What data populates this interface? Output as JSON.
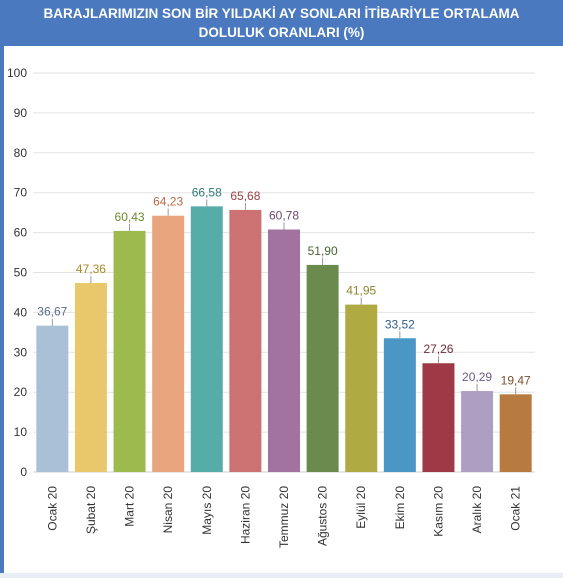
{
  "header": {
    "title_line1": "BARAJLARIMIZIN SON BİR YILDAKİ AY SONLARI İTİBARİYLE ORTALAMA",
    "title_line2": "DOLULUK ORANLARI (%)"
  },
  "colors": {
    "header_bg": "#4a79c0",
    "grid": "#e3e3e3",
    "axis_text": "#333333"
  },
  "chart_data": {
    "type": "bar",
    "title": "BARAJLARIMIZIN SON BİR YILDAKİ AY SONLARI İTİBARİYLE ORTALAMA DOLULUK ORANLARI (%)",
    "categories": [
      "Ocak 20",
      "Şubat 20",
      "Mart 20",
      "Nisan 20",
      "Mayıs 20",
      "Haziran 20",
      "Temmuz 20",
      "Ağustos 20",
      "Eylül 20",
      "Ekim 20",
      "Kasım 20",
      "Aralık 20",
      "Ocak 21"
    ],
    "values": [
      36.67,
      47.36,
      60.43,
      64.23,
      66.58,
      65.68,
      60.78,
      51.9,
      41.95,
      33.52,
      27.26,
      20.29,
      19.47
    ],
    "value_labels": [
      "36,67",
      "47,36",
      "60,43",
      "64,23",
      "66,58",
      "65,68",
      "60,78",
      "51,90",
      "41,95",
      "33,52",
      "27,26",
      "20,29",
      "19,47"
    ],
    "bar_colors": [
      "#a9c0d6",
      "#e9c86b",
      "#9dba4e",
      "#e9a57e",
      "#55aca8",
      "#cd7272",
      "#a2739f",
      "#6b8a4d",
      "#b0aa43",
      "#4a97c6",
      "#9e3a45",
      "#ad9fc2",
      "#b77b42"
    ],
    "label_colors": [
      "#5a6e85",
      "#a88a28",
      "#6a8a2c",
      "#b86a48",
      "#2e7b78",
      "#9a3f44",
      "#6e4a6a",
      "#4a6335",
      "#8a8630",
      "#2e5f85",
      "#6e2a38",
      "#6a5a80",
      "#7a5030"
    ],
    "ylim": [
      0,
      100
    ],
    "yticks": [
      0,
      10,
      20,
      30,
      40,
      50,
      60,
      70,
      80,
      90,
      100
    ],
    "grid": true,
    "legend": "none"
  }
}
